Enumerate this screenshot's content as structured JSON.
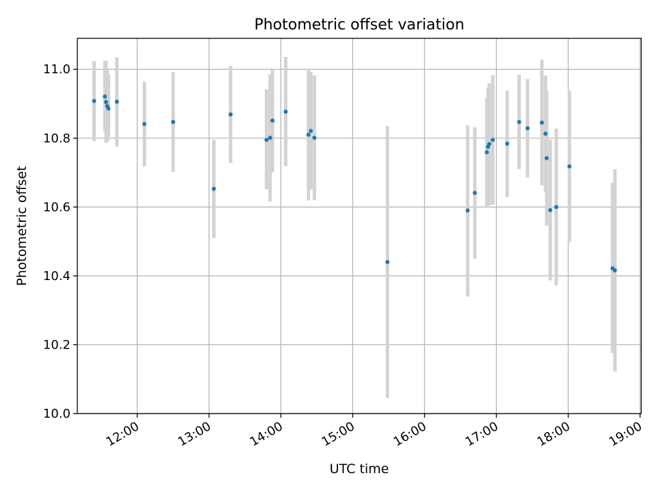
{
  "chart_data": {
    "type": "scatter",
    "title": "Photometric offset variation",
    "xlabel": "UTC time",
    "ylabel": "Photometric offset",
    "xlim": [
      "11:10",
      "19:01"
    ],
    "ylim": [
      10.0,
      11.09
    ],
    "x_ticks": [
      "12:00",
      "13:00",
      "14:00",
      "15:00",
      "16:00",
      "17:00",
      "18:00",
      "19:00"
    ],
    "y_ticks": [
      "10.0",
      "10.2",
      "10.4",
      "10.6",
      "10.8",
      "11.0"
    ],
    "grid": true,
    "colors": {
      "points": "#1f77b4",
      "error_bars": "#d3d3d3"
    },
    "series": [
      {
        "points": [
          {
            "x": "11:24",
            "y": 10.908,
            "yerr_low": 10.792,
            "yerr_high": 11.024
          },
          {
            "x": "11:33",
            "y": 10.921,
            "yerr_low": 10.82,
            "yerr_high": 11.024
          },
          {
            "x": "11:34",
            "y": 10.905,
            "yerr_low": 10.786,
            "yerr_high": 11.025
          },
          {
            "x": "11:35",
            "y": 10.893,
            "yerr_low": 10.79,
            "yerr_high": 11.0
          },
          {
            "x": "11:36",
            "y": 10.886,
            "yerr_low": 10.795,
            "yerr_high": 10.985
          },
          {
            "x": "11:43",
            "y": 10.906,
            "yerr_low": 10.776,
            "yerr_high": 11.035
          },
          {
            "x": "12:06",
            "y": 10.841,
            "yerr_low": 10.718,
            "yerr_high": 10.964
          },
          {
            "x": "12:30",
            "y": 10.847,
            "yerr_low": 10.702,
            "yerr_high": 10.992
          },
          {
            "x": "13:04",
            "y": 10.653,
            "yerr_low": 10.51,
            "yerr_high": 10.795
          },
          {
            "x": "13:18",
            "y": 10.869,
            "yerr_low": 10.728,
            "yerr_high": 11.01
          },
          {
            "x": "13:48",
            "y": 10.795,
            "yerr_low": 10.651,
            "yerr_high": 10.942
          },
          {
            "x": "13:51",
            "y": 10.801,
            "yerr_low": 10.616,
            "yerr_high": 10.986
          },
          {
            "x": "13:53",
            "y": 10.851,
            "yerr_low": 10.701,
            "yerr_high": 10.998
          },
          {
            "x": "14:04",
            "y": 10.877,
            "yerr_low": 10.719,
            "yerr_high": 11.036
          },
          {
            "x": "14:23",
            "y": 10.81,
            "yerr_low": 10.619,
            "yerr_high": 11.0
          },
          {
            "x": "14:25",
            "y": 10.821,
            "yerr_low": 10.65,
            "yerr_high": 10.993
          },
          {
            "x": "14:28",
            "y": 10.801,
            "yerr_low": 10.62,
            "yerr_high": 10.982
          },
          {
            "x": "15:29",
            "y": 10.44,
            "yerr_low": 10.045,
            "yerr_high": 10.835
          },
          {
            "x": "16:36",
            "y": 10.59,
            "yerr_low": 10.34,
            "yerr_high": 10.837
          },
          {
            "x": "16:42",
            "y": 10.641,
            "yerr_low": 10.45,
            "yerr_high": 10.832
          },
          {
            "x": "16:52",
            "y": 10.759,
            "yerr_low": 10.6,
            "yerr_high": 10.917
          },
          {
            "x": "16:53",
            "y": 10.775,
            "yerr_low": 10.605,
            "yerr_high": 10.946
          },
          {
            "x": "16:54",
            "y": 10.783,
            "yerr_low": 10.605,
            "yerr_high": 10.96
          },
          {
            "x": "16:57",
            "y": 10.795,
            "yerr_low": 10.607,
            "yerr_high": 10.983
          },
          {
            "x": "17:09",
            "y": 10.784,
            "yerr_low": 10.629,
            "yerr_high": 10.938
          },
          {
            "x": "17:19",
            "y": 10.847,
            "yerr_low": 10.71,
            "yerr_high": 10.984
          },
          {
            "x": "17:26",
            "y": 10.829,
            "yerr_low": 10.686,
            "yerr_high": 10.972
          },
          {
            "x": "17:38",
            "y": 10.845,
            "yerr_low": 10.663,
            "yerr_high": 11.028
          },
          {
            "x": "17:41",
            "y": 10.813,
            "yerr_low": 10.644,
            "yerr_high": 10.982
          },
          {
            "x": "17:42",
            "y": 10.742,
            "yerr_low": 10.546,
            "yerr_high": 10.938
          },
          {
            "x": "17:45",
            "y": 10.591,
            "yerr_low": 10.387,
            "yerr_high": 10.796
          },
          {
            "x": "17:50",
            "y": 10.6,
            "yerr_low": 10.372,
            "yerr_high": 10.828
          },
          {
            "x": "18:01",
            "y": 10.718,
            "yerr_low": 10.498,
            "yerr_high": 10.938
          },
          {
            "x": "18:37",
            "y": 10.422,
            "yerr_low": 10.176,
            "yerr_high": 10.67
          },
          {
            "x": "18:39",
            "y": 10.416,
            "yerr_low": 10.122,
            "yerr_high": 10.71
          }
        ]
      }
    ]
  }
}
